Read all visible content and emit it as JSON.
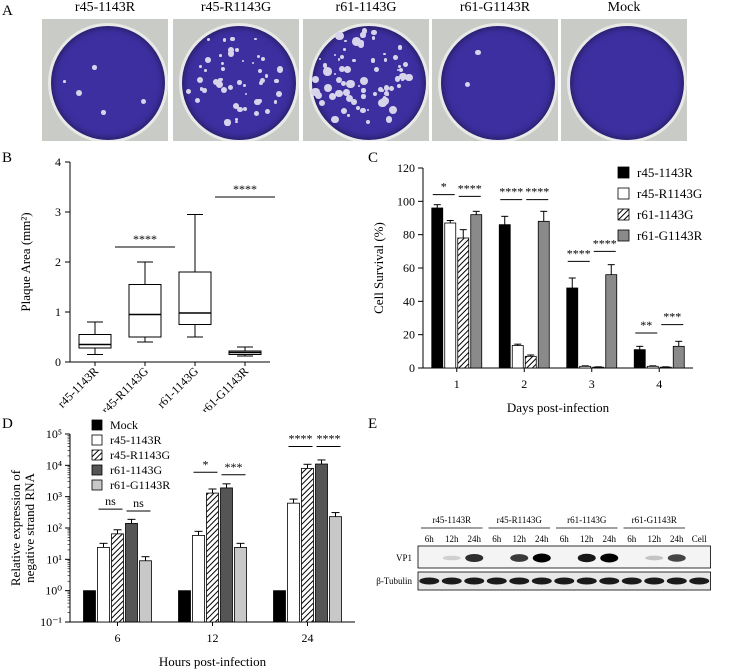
{
  "panels": {
    "A": "A",
    "B": "B",
    "C": "C",
    "D": "D",
    "E": "E"
  },
  "plates": [
    {
      "label": "r45-1143R",
      "plaque_density": 0.05
    },
    {
      "label": "r45-R1143G",
      "plaque_density": 0.55
    },
    {
      "label": "r61-1143G",
      "plaque_density": 0.8
    },
    {
      "label": "r61-G1143R",
      "plaque_density": 0.02
    },
    {
      "label": "Mock",
      "plaque_density": 0
    }
  ],
  "panelB": {
    "ylabel": "Plaque Area (mm²)",
    "significance": [
      "****",
      "****"
    ],
    "chart_data": {
      "type": "box",
      "categories": [
        "r45-1143R",
        "r45-R1143G",
        "r61-1143G",
        "r61-G1143R"
      ],
      "ylim": [
        0,
        4
      ],
      "yticks": [
        "0",
        "1",
        "2",
        "3",
        "4"
      ],
      "boxes": [
        {
          "min": 0.15,
          "q1": 0.28,
          "median": 0.35,
          "q3": 0.55,
          "max": 0.8
        },
        {
          "min": 0.4,
          "q1": 0.5,
          "median": 0.95,
          "q3": 1.55,
          "max": 2.0
        },
        {
          "min": 0.5,
          "q1": 0.75,
          "median": 0.98,
          "q3": 1.8,
          "max": 2.95
        },
        {
          "min": 0.12,
          "q1": 0.15,
          "median": 0.19,
          "q3": 0.22,
          "max": 0.3
        }
      ]
    }
  },
  "panelC": {
    "ylabel": "Cell Survival (%)",
    "xlabel": "Days post-infection",
    "legend": [
      "r45-1143R",
      "r45-R1143G",
      "r61-1143G",
      "r61-G1143R"
    ],
    "significance": [
      "*",
      "****",
      "****",
      "****",
      "****",
      "****",
      "**",
      "***"
    ],
    "chart_data": {
      "type": "bar",
      "categories": [
        "1",
        "2",
        "3",
        "4"
      ],
      "ylim": [
        0,
        120
      ],
      "yticks": [
        "0",
        "20",
        "40",
        "60",
        "80",
        "100",
        "120"
      ],
      "series": [
        {
          "name": "r45-1143R",
          "values": [
            96,
            86,
            48,
            11
          ],
          "err": [
            2,
            5,
            6,
            2
          ]
        },
        {
          "name": "r45-R1143G",
          "values": [
            87,
            13.5,
            1,
            1
          ],
          "err": [
            1.5,
            0.8,
            0.3,
            0.3
          ]
        },
        {
          "name": "r61-1143G",
          "values": [
            78,
            7,
            0.5,
            0.5
          ],
          "err": [
            5,
            0.8,
            0.2,
            0.2
          ]
        },
        {
          "name": "r61-G1143R",
          "values": [
            92,
            88,
            56,
            13
          ],
          "err": [
            2,
            6,
            6,
            3
          ]
        }
      ]
    }
  },
  "panelD": {
    "ylabel_line1": "Relative expression of",
    "ylabel_line2": "negative strand  RNA",
    "xlabel": "Hours post-infection",
    "legend": [
      "Mock",
      "r45-1143R",
      "r45-R1143G",
      "r61-1143G",
      "r61-G1143R"
    ],
    "significance": [
      "ns",
      "ns",
      "*",
      "***",
      "****",
      "****"
    ],
    "yticks": [
      "10⁻¹",
      "10⁰",
      "10¹",
      "10²",
      "10³",
      "10⁴",
      "10⁵"
    ],
    "chart_data": {
      "type": "bar",
      "yscale": "log",
      "categories": [
        "6",
        "12",
        "24"
      ],
      "ylim": [
        0.1,
        100000
      ],
      "series": [
        {
          "name": "Mock",
          "values": [
            1,
            1,
            1
          ]
        },
        {
          "name": "r45-1143R",
          "values": [
            24,
            58,
            620
          ]
        },
        {
          "name": "r45-R1143G",
          "values": [
            65,
            1300,
            8000
          ]
        },
        {
          "name": "r61-1143G",
          "values": [
            140,
            1900,
            11000
          ]
        },
        {
          "name": "r61-G1143R",
          "values": [
            9,
            24,
            230
          ]
        }
      ]
    }
  },
  "panelE": {
    "groups": [
      "r45-1143R",
      "r45-R1143G",
      "r61-1143G",
      "r61-G1143R"
    ],
    "times": [
      "6h",
      "12h",
      "24h"
    ],
    "cell_label": "Cell",
    "rows": [
      "VP1",
      "β-Tubulin"
    ],
    "vp1_intensity": [
      0,
      0.1,
      0.8,
      0,
      0.75,
      1,
      0,
      0.9,
      1,
      0,
      0.15,
      0.7,
      0
    ]
  }
}
